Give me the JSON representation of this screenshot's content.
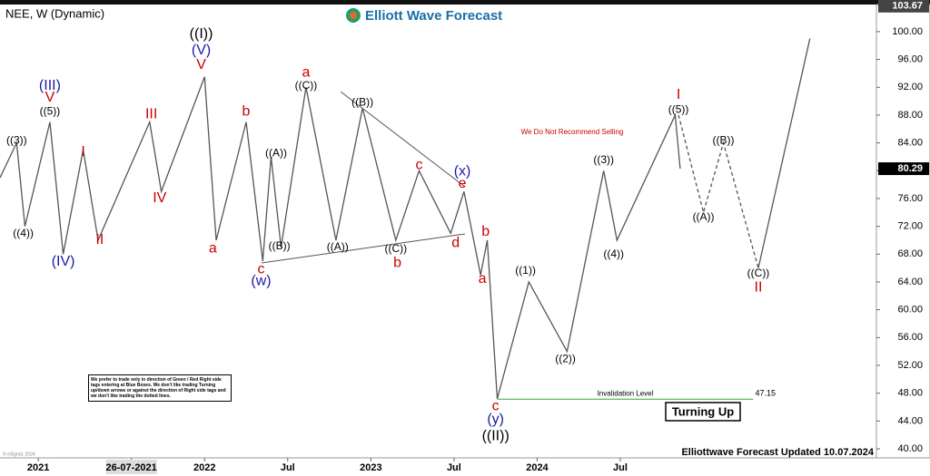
{
  "chart_data": {
    "type": "line",
    "title": "NEE, W (Dynamic)",
    "brand": "Elliott Wave Forecast",
    "xlim": [
      2020.77,
      2026.04
    ],
    "ylim": [
      38.7,
      103.9
    ],
    "xticks": [
      {
        "value": 2021,
        "label": "2021"
      },
      {
        "value": 2021.56,
        "label": "26-07-2021"
      },
      {
        "value": 2022,
        "label": "2022"
      },
      {
        "value": 2022.5,
        "label": "Jul"
      },
      {
        "value": 2023,
        "label": "2023"
      },
      {
        "value": 2023.5,
        "label": "Jul"
      },
      {
        "value": 2024,
        "label": "2024"
      },
      {
        "value": 2024.5,
        "label": "Jul"
      }
    ],
    "yticks": [
      {
        "value": 40,
        "label": "40.00"
      },
      {
        "value": 44,
        "label": "44.00"
      },
      {
        "value": 48,
        "label": "48.00"
      },
      {
        "value": 52,
        "label": "52.00"
      },
      {
        "value": 56,
        "label": "56.00"
      },
      {
        "value": 60,
        "label": "60.00"
      },
      {
        "value": 64,
        "label": "64.00"
      },
      {
        "value": 68,
        "label": "68.00"
      },
      {
        "value": 72,
        "label": "72.00"
      },
      {
        "value": 76,
        "label": "76.00"
      },
      {
        "value": 80,
        "label": "80.00"
      },
      {
        "value": 84,
        "label": "84.00"
      },
      {
        "value": 88,
        "label": "88.00"
      },
      {
        "value": 92,
        "label": "92.00"
      },
      {
        "value": 96,
        "label": "96.00"
      },
      {
        "value": 100,
        "label": "100.00"
      }
    ],
    "price_tags": [
      {
        "value": 103.67,
        "color": "#444444"
      },
      {
        "value": 80.29,
        "color": "#000000"
      }
    ],
    "series": [
      {
        "color": "#555555",
        "dash": false,
        "x": [
          2020.77,
          2020.87,
          2020.92,
          2021.07,
          2021.15,
          2021.27,
          2021.36,
          2021.67,
          2021.74,
          2022.0,
          2022.07,
          2022.25,
          2022.35,
          2022.4,
          2022.46,
          2022.61,
          2022.79,
          2022.95,
          2023.15,
          2023.29,
          2023.48,
          2023.56,
          2023.66,
          2023.7,
          2023.76,
          2023.95,
          2024.18,
          2024.4,
          2024.48,
          2024.83,
          2024.86
        ],
        "values": [
          79,
          84,
          72,
          87,
          68,
          83,
          70,
          87,
          77,
          93.5,
          70,
          87,
          67,
          82,
          69,
          92,
          70,
          89,
          70,
          80,
          71,
          77,
          65,
          70,
          47.2,
          64,
          54,
          80,
          70,
          88,
          80.29
        ]
      },
      {
        "color": "#555555",
        "dash": true,
        "x": [
          2024.85,
          2025.0,
          2025.12,
          2025.33
        ],
        "values": [
          88,
          74,
          84,
          66
        ]
      },
      {
        "color": "#555555",
        "dash": false,
        "x": [
          2025.33,
          2025.64
        ],
        "values": [
          66,
          99
        ]
      }
    ],
    "annotations": [
      {
        "text": "((3))",
        "color": "#000000",
        "x": 2020.87,
        "y": 84.3
      },
      {
        "text": "((4))",
        "color": "#000000",
        "x": 2020.91,
        "y": 70.9
      },
      {
        "text": "((5))",
        "color": "#000000",
        "x": 2021.07,
        "y": 88.5
      },
      {
        "text": "V",
        "color": "#cc0000",
        "x": 2021.07,
        "y": 90.5
      },
      {
        "text": "(III)",
        "color": "#1a1aa8",
        "x": 2021.07,
        "y": 92.2
      },
      {
        "text": "(IV)",
        "color": "#1a1aa8",
        "x": 2021.15,
        "y": 66.9
      },
      {
        "text": "I",
        "color": "#cc0000",
        "x": 2021.27,
        "y": 82.7
      },
      {
        "text": "II",
        "color": "#cc0000",
        "x": 2021.37,
        "y": 70.0
      },
      {
        "text": "III",
        "color": "#cc0000",
        "x": 2021.68,
        "y": 88.1
      },
      {
        "text": "IV",
        "color": "#cc0000",
        "x": 2021.73,
        "y": 76.0
      },
      {
        "text": "V",
        "color": "#cc0000",
        "x": 2021.98,
        "y": 95.2
      },
      {
        "text": "(V)",
        "color": "#1a1aa8",
        "x": 2021.98,
        "y": 97.3
      },
      {
        "text": "((I))",
        "color": "#000000",
        "x": 2021.98,
        "y": 99.6
      },
      {
        "text": "a",
        "color": "#cc0000",
        "x": 2022.05,
        "y": 68.8
      },
      {
        "text": "b",
        "color": "#cc0000",
        "x": 2022.25,
        "y": 88.5
      },
      {
        "text": "c",
        "color": "#cc0000",
        "x": 2022.34,
        "y": 65.8
      },
      {
        "text": "(w)",
        "color": "#1a1aa8",
        "x": 2022.34,
        "y": 64.1
      },
      {
        "text": "((A))",
        "color": "#000000",
        "x": 2022.43,
        "y": 82.5
      },
      {
        "text": "((B))",
        "color": "#000000",
        "x": 2022.45,
        "y": 69.1
      },
      {
        "text": "a",
        "color": "#cc0000",
        "x": 2022.61,
        "y": 94.1
      },
      {
        "text": "((C))",
        "color": "#000000",
        "x": 2022.61,
        "y": 92.2
      },
      {
        "text": "((B))",
        "color": "#000000",
        "x": 2022.95,
        "y": 89.8
      },
      {
        "text": "((A))",
        "color": "#000000",
        "x": 2022.8,
        "y": 69.0
      },
      {
        "text": "((C))",
        "color": "#000000",
        "x": 2023.15,
        "y": 68.7
      },
      {
        "text": "b",
        "color": "#cc0000",
        "x": 2023.16,
        "y": 66.7
      },
      {
        "text": "c",
        "color": "#cc0000",
        "x": 2023.29,
        "y": 80.8
      },
      {
        "text": "d",
        "color": "#cc0000",
        "x": 2023.51,
        "y": 69.6
      },
      {
        "text": "e",
        "color": "#cc0000",
        "x": 2023.55,
        "y": 78.1
      },
      {
        "text": "(x)",
        "color": "#1a1aa8",
        "x": 2023.55,
        "y": 79.9
      },
      {
        "text": "b",
        "color": "#cc0000",
        "x": 2023.69,
        "y": 71.2
      },
      {
        "text": "a",
        "color": "#cc0000",
        "x": 2023.67,
        "y": 64.4
      },
      {
        "text": "c",
        "color": "#cc0000",
        "x": 2023.75,
        "y": 46.1
      },
      {
        "text": "(y)",
        "color": "#1a1aa8",
        "x": 2023.75,
        "y": 44.2
      },
      {
        "text": "((II))",
        "color": "#000000",
        "x": 2023.75,
        "y": 41.8
      },
      {
        "text": "((1))",
        "color": "#000000",
        "x": 2023.93,
        "y": 65.6
      },
      {
        "text": "((2))",
        "color": "#000000",
        "x": 2024.17,
        "y": 52.9
      },
      {
        "text": "((3))",
        "color": "#000000",
        "x": 2024.4,
        "y": 81.5
      },
      {
        "text": "((4))",
        "color": "#000000",
        "x": 2024.46,
        "y": 67.9
      },
      {
        "text": "((5))",
        "color": "#000000",
        "x": 2024.85,
        "y": 88.7
      },
      {
        "text": "I",
        "color": "#cc0000",
        "x": 2024.85,
        "y": 90.9
      },
      {
        "text": "((A))",
        "color": "#000000",
        "x": 2025.0,
        "y": 73.3
      },
      {
        "text": "((B))",
        "color": "#000000",
        "x": 2025.12,
        "y": 84.3
      },
      {
        "text": "((C))",
        "color": "#000000",
        "x": 2025.33,
        "y": 65.2
      },
      {
        "text": "II",
        "color": "#cc0000",
        "x": 2025.33,
        "y": 63.2
      }
    ],
    "note": "We Do Not Recommend Selling",
    "invalidation": {
      "label": "Invalidation Level",
      "value": 47.15,
      "x": [
        2023.76,
        2025.3
      ],
      "color": "#33aa33"
    },
    "badge": "Turning Up",
    "footer": "Elliottwave Forecast Updated 10.07.2024",
    "copyright": "© eSignal, 2024",
    "disclaimer": "We prefer to trade only in direction of Green / Red Right side tags entering at Blue Boxes. We don't like trading Turning up/down arrows or against the direction of Right side tags and we don't like trading the dotted lines."
  }
}
